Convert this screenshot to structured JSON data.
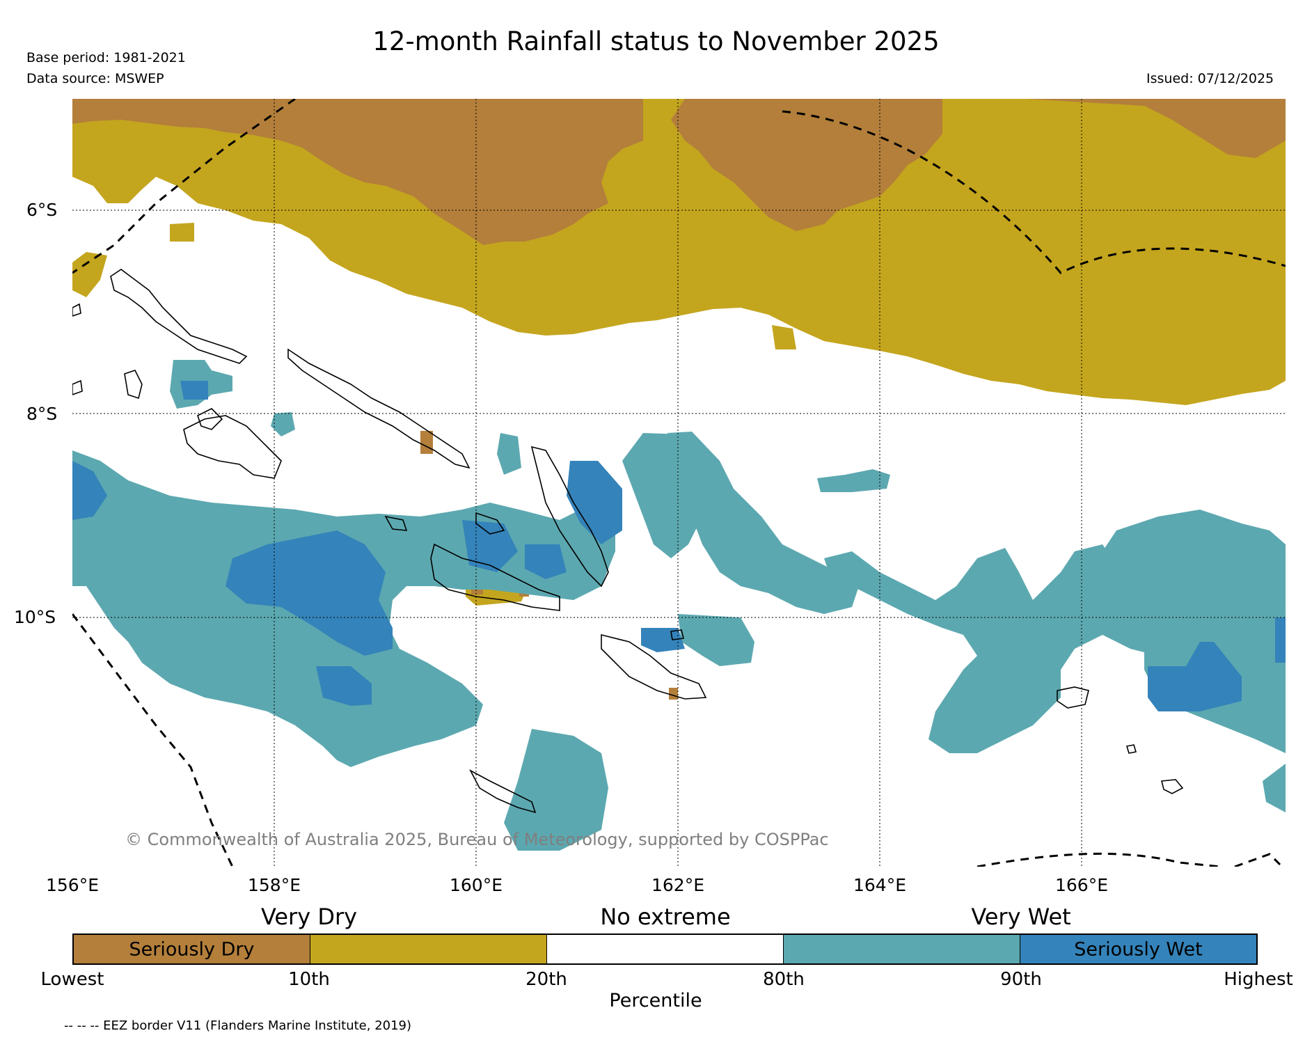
{
  "title": "12-month Rainfall status to November 2025",
  "base_period": "Base period: 1981-2021",
  "data_source": "Data source: MSWEP",
  "issued": "Issued: 07/12/2025",
  "credit": "© Commonwealth of Australia 2025, Bureau of Meteorology, supported by COSPPac",
  "eez_note": "-- -- -- EEZ border V11 (Flanders Marine Institute, 2019)",
  "map": {
    "lon_range": [
      156,
      168
    ],
    "lat_range": [
      -4.9,
      -12.5
    ],
    "lon_ticks": [
      "156°E",
      "158°E",
      "160°E",
      "162°E",
      "164°E",
      "166°E"
    ],
    "lat_ticks": [
      "6°S",
      "8°S",
      "10°S"
    ]
  },
  "legend": {
    "categories": [
      "Very Dry",
      "No extreme",
      "Very Wet"
    ],
    "segments": [
      {
        "label": "Seriously Dry",
        "color": "#b37f3b"
      },
      {
        "label": "",
        "color": "#c4a51e"
      },
      {
        "label": "",
        "color": "#ffffff"
      },
      {
        "label": "",
        "color": "#5ca8b0"
      },
      {
        "label": "Seriously Wet",
        "color": "#3483ba"
      }
    ],
    "percentiles": [
      "Lowest",
      "10th",
      "20th",
      "80th",
      "90th",
      "Highest"
    ],
    "axis_title": "Percentile"
  },
  "colors": {
    "seriously_dry": "#b37f3b",
    "very_dry": "#c4a51e",
    "very_wet": "#5ca8b0",
    "seriously_wet": "#3483ba"
  }
}
